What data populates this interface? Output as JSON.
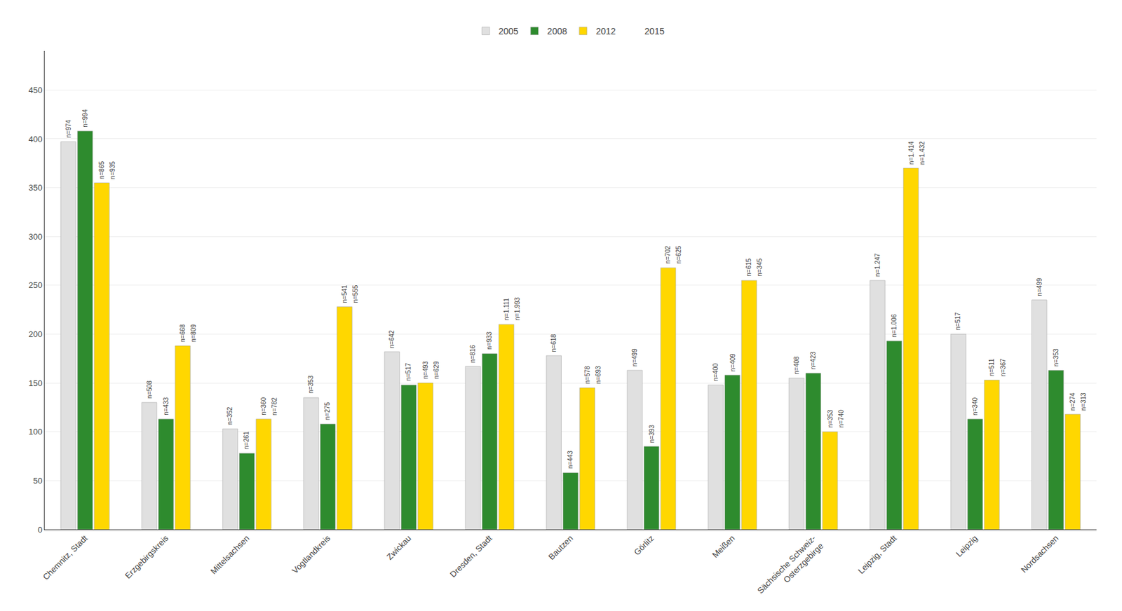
{
  "chart_data": {
    "type": "bar",
    "categories": [
      "Chemnitz, Stadt",
      "Erzgebirgskreis",
      "Mittelsachsen",
      "Vogtlandkreis",
      "Zwickau",
      "Dresden, Stadt",
      "Bautzen",
      "Görlitz",
      "Meißen",
      "Sächsische Schweiz-\nOsterzgebirge",
      "Leipzig, Stadt",
      "Leipzig",
      "Nordsachsen"
    ],
    "series": [
      {
        "name": "2005",
        "color": "#e0e0e0",
        "values": [
          397,
          130,
          103,
          135,
          182,
          167,
          178,
          163,
          148,
          155,
          255,
          200,
          235
        ],
        "annotations": [
          "n=974",
          "n=508",
          "n=352",
          "n=353",
          "n=642",
          "n=816",
          "n=618",
          "n=499",
          "n=400",
          "n=408",
          "n=1.247",
          "n=517",
          "n=499"
        ]
      },
      {
        "name": "2008",
        "color": "#2e8b2e",
        "values": [
          408,
          113,
          78,
          108,
          148,
          180,
          58,
          85,
          158,
          160,
          193,
          113,
          163
        ],
        "annotations": [
          "n=994",
          "n=433",
          "n=261",
          "n=275",
          "n=517",
          "n=933",
          "n=443",
          "n=393",
          "n=409",
          "n=423",
          "n=1.006",
          "n=340",
          "n=353"
        ]
      },
      {
        "name": "2012",
        "color": "#ffd700",
        "values": [
          355,
          188,
          113,
          228,
          150,
          210,
          145,
          268,
          255,
          100,
          370,
          153,
          118
        ],
        "annotations": [
          "n=865",
          "n=668",
          "n=360",
          "n=541",
          "n=493",
          "n=1.111",
          "n=578",
          "n=702",
          "n=615",
          "n=353",
          "n=1.414",
          "n=511",
          "n=274"
        ]
      }
    ],
    "annotations": {
      "name": "2015",
      "texts": [
        "n=935",
        "n=809",
        "n=782",
        "n=555",
        "n=629",
        "n=1.993",
        "n=693",
        "n=625",
        "n=345",
        "n=740",
        "n=1.432",
        "n=367",
        "n=313"
      ]
    },
    "ylim": [
      0,
      490
    ],
    "yticks": [
      0,
      50,
      100,
      150,
      200,
      250,
      300,
      350,
      400,
      450
    ],
    "grid": true,
    "legend": "top"
  }
}
